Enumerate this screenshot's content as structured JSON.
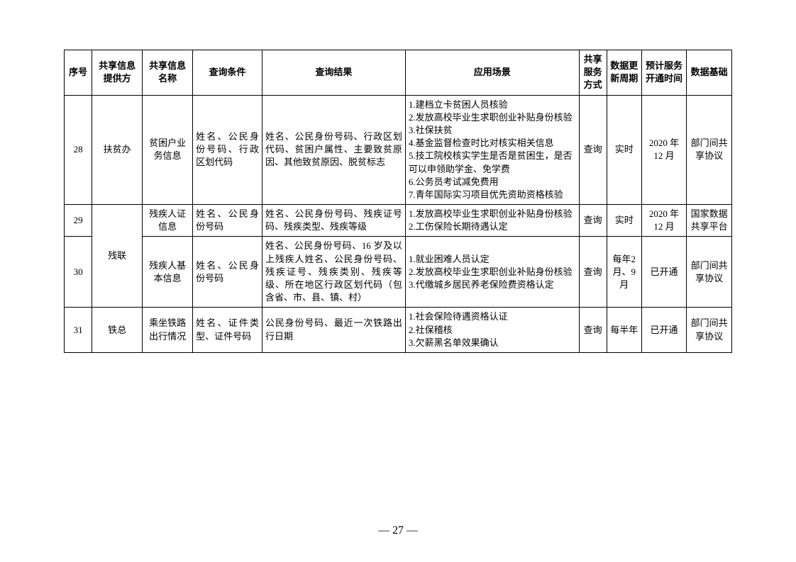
{
  "table": {
    "headers": {
      "seq": "序号",
      "provider": "共享信息提供方",
      "name": "共享信息名称",
      "condition": "查询条件",
      "result": "查询结果",
      "scenario": "应用场景",
      "mode": "共享服务方式",
      "period": "数据更新周期",
      "time": "预计服务开通时间",
      "basis": "数据基础"
    },
    "rows": [
      {
        "seq": "28",
        "provider": "扶贫办",
        "name": "贫困户业务信息",
        "condition": "姓名、公民身份号码、行政区划代码",
        "result": "姓名、公民身份号码、行政区划代码、贫困户属性、主要致贫原因、其他致贫原因、脱贫标志",
        "scenario": "1.建档立卡贫困人员核验\n2.发放高校毕业生求职创业补贴身份核验\n3.社保扶贫\n4.基金监督检查时比对核实相关信息\n5.技工院校核实学生是否是贫困生，是否可以申领助学金、免学费\n6.公务员考试减免费用\n7.青年国际实习项目优先资助资格核验",
        "mode": "查询",
        "period": "实时",
        "time": "2020 年12 月",
        "basis": "部门间共享协议"
      },
      {
        "seq": "29",
        "provider": "残联",
        "providerRowspan": 2,
        "name": "残疾人证信息",
        "condition": "姓名、公民身份号码",
        "result": "姓名、公民身份号码、残疾证号码、残疾类型、残疾等级",
        "scenario": "1.发放高校毕业生求职创业补贴身份核验\n2.工伤保险长期待遇认定",
        "mode": "查询",
        "period": "实时",
        "time": "2020 年12 月",
        "basis": "国家数据共享平台"
      },
      {
        "seq": "30",
        "name": "残疾人基本信息",
        "condition": "姓名、公民身份号码",
        "result": "姓名、公民身份号码、16 岁及以上残疾人姓名、公民身份号码、残疾证号、残疾类别、残疾等级、所在地区行政区划代码（包含省、市、县、镇、村）",
        "scenario": "1.就业困难人员认定\n2.发放高校毕业生求职创业补贴身份核验\n3.代缴城乡居民养老保险费资格认定",
        "mode": "查询",
        "period": "每年2 月、9 月",
        "time": "已开通",
        "basis": "部门间共享协议"
      },
      {
        "seq": "31",
        "provider": "铁总",
        "name": "乘坐铁路出行情况",
        "condition": "姓名、证件类型、证件号码",
        "result": "公民身份号码、最近一次铁路出行日期",
        "scenario": "1.社会保险待遇资格认证\n2.社保稽核\n3.欠薪黑名单效果确认",
        "mode": "查询",
        "period": "每半年",
        "time": "已开通",
        "basis": "部门间共享协议"
      }
    ]
  },
  "pageNumber": "— 27 —",
  "colors": {
    "border": "#000000",
    "text": "#000000",
    "background": "#ffffff"
  },
  "typography": {
    "fontFamily": "SimSun",
    "fontSize": 13,
    "headerFontWeight": "bold"
  }
}
